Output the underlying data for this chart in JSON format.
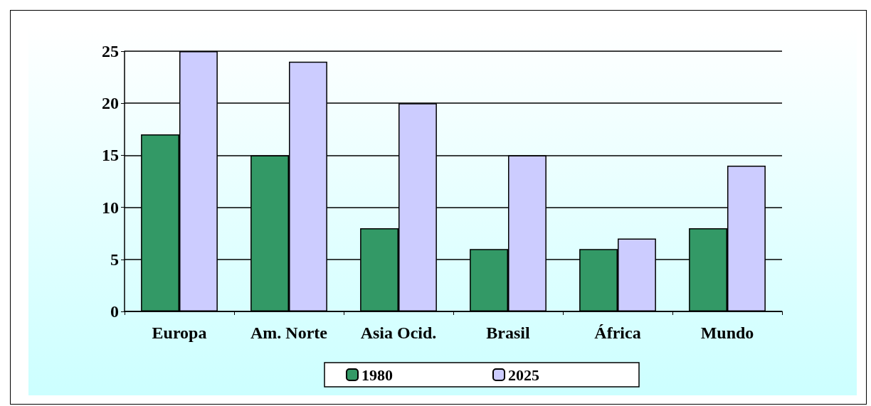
{
  "chart_data": {
    "type": "bar",
    "categories": [
      "Europa",
      "Am. Norte",
      "Asia Ocid.",
      "Brasil",
      "África",
      "Mundo"
    ],
    "series": [
      {
        "name": "1980",
        "color": "#339966",
        "values": [
          17,
          15,
          8,
          6,
          6,
          8
        ]
      },
      {
        "name": "2025",
        "color": "#ccccff",
        "values": [
          25,
          24,
          20,
          15,
          7,
          14
        ]
      }
    ],
    "ylim": [
      0,
      25
    ],
    "yticks": [
      0,
      5,
      10,
      15,
      20,
      25
    ],
    "grid": "y",
    "legend": "bottom"
  }
}
